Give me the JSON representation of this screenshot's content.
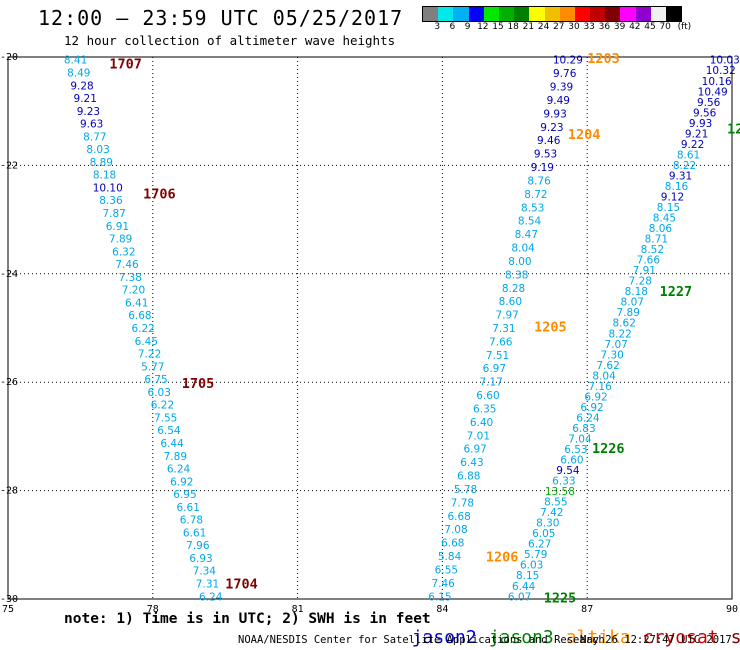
{
  "header": {
    "title": "12:00 – 23:59 UTC 05/25/2017",
    "subtitle": "12 hour collection of altimeter wave heights"
  },
  "colorbar": {
    "unit": "(ft)",
    "labels": [
      "3",
      "6",
      "9",
      "12",
      "15",
      "18",
      "21",
      "24",
      "27",
      "30",
      "33",
      "36",
      "39",
      "42",
      "45",
      "70"
    ],
    "colors": [
      "#7f7f7f",
      "#00e8e8",
      "#00b0f0",
      "#0000ff",
      "#00e800",
      "#00b000",
      "#008000",
      "#ffff00",
      "#f0c000",
      "#ff8c00",
      "#ff0000",
      "#c00000",
      "#800000",
      "#ff00ff",
      "#9000d0",
      "#f0f0f0",
      "#000000"
    ]
  },
  "axes": {
    "lon_min": 75,
    "lon_max": 90,
    "lat_min": -30,
    "lat_max": -20,
    "x_ticks": [
      "75",
      "78",
      "81",
      "84",
      "87",
      "90"
    ],
    "y_ticks": [
      "-20",
      "-22",
      "-24",
      "-26",
      "-28",
      "-30"
    ]
  },
  "satellite_colors": {
    "jason2": "#0000cc",
    "jason3": "#008000",
    "altika": "#ff8c00",
    "cryosat": "#cc0000",
    "s3a": "#800000"
  },
  "wave_colors": {
    "low": "#00a8e8",
    "mid": "#0000b8",
    "high": "#00b000"
  },
  "tracks": [
    {
      "name": "s3a-1704-1707",
      "lon_start": 76.4,
      "lon_end": 79.2,
      "lat_start": -20.05,
      "lat_end": -29.95,
      "values": [
        "8.41",
        "8.49",
        "9.28",
        "9.21",
        "9.23",
        "9.63",
        "8.77",
        "8.03",
        "8.89",
        "8.18",
        "10.10",
        "8.36",
        "7.87",
        "6.91",
        "7.89",
        "6.32",
        "7.46",
        "7.38",
        "7.20",
        "6.41",
        "6.68",
        "6.22",
        "6.45",
        "7.22",
        "5.77",
        "6.75",
        "6.03",
        "6.22",
        "7.55",
        "6.54",
        "6.44",
        "7.89",
        "6.24",
        "6.92",
        "6.95",
        "6.61",
        "6.78",
        "6.61",
        "7.96",
        "6.93",
        "7.34",
        "7.31",
        "6.24"
      ]
    },
    {
      "name": "altika-1203-1206",
      "lon_start": 86.6,
      "lon_end": 83.95,
      "lat_start": -20.05,
      "lat_end": -29.95,
      "values": [
        "10.29",
        "9.76",
        "9.39",
        "9.49",
        "9.93",
        "9.23",
        "9.46",
        "9.53",
        "9.19",
        "8.76",
        "8.72",
        "8.53",
        "8.54",
        "8.47",
        "8.04",
        "8.00",
        "8.38",
        "8.28",
        "8.60",
        "7.97",
        "7.31",
        "7.66",
        "7.51",
        "6.97",
        "7.17",
        "6.60",
        "6.35",
        "6.40",
        "7.01",
        "6.97",
        "6.43",
        "6.88",
        "5.78",
        "7.78",
        "6.68",
        "7.08",
        "6.68",
        "5.84",
        "6.55",
        "7.46",
        "6.15"
      ]
    },
    {
      "name": "jason3-1225-1227",
      "lon_start": 89.85,
      "lon_end": 85.6,
      "lat_start": -20.05,
      "lat_end": -29.95,
      "values": [
        "10.03",
        "10.32",
        "10.16",
        "10.49",
        "9.56",
        "9.56",
        "9.93",
        "9.21",
        "9.22",
        "8.61",
        "8.22",
        "9.31",
        "8.16",
        "9.12",
        "8.15",
        "8.45",
        "8.06",
        "8.71",
        "8.52",
        "7.66",
        "7.91",
        "7.28",
        "8.18",
        "8.07",
        "7.89",
        "8.62",
        "8.22",
        "7.07",
        "7.30",
        "7.62",
        "8.04",
        "7.16",
        "6.92",
        "6.92",
        "6.24",
        "6.83",
        "7.04",
        "6.53",
        "6.60",
        "9.54",
        "6.33",
        "13.58",
        "8.55",
        "7.42",
        "8.30",
        "6.05",
        "6.27",
        "5.79",
        "6.03",
        "8.15",
        "6.44",
        "6.07"
      ]
    }
  ],
  "pass_labels": [
    {
      "text": "1707",
      "sat": "s3a",
      "lon": 77.1,
      "lat": -20.1
    },
    {
      "text": "1706",
      "sat": "s3a",
      "lon": 77.8,
      "lat": -22.5
    },
    {
      "text": "1705",
      "sat": "s3a",
      "lon": 78.6,
      "lat": -26.0
    },
    {
      "text": "1704",
      "sat": "s3a",
      "lon": 79.5,
      "lat": -29.7
    },
    {
      "text": "1203",
      "sat": "altika",
      "lon": 87.0,
      "lat": -20.0
    },
    {
      "text": "1204",
      "sat": "altika",
      "lon": 86.6,
      "lat": -21.4
    },
    {
      "text": "1205",
      "sat": "altika",
      "lon": 85.9,
      "lat": -24.95
    },
    {
      "text": "1206",
      "sat": "altika",
      "lon": 84.9,
      "lat": -29.2
    },
    {
      "text": "12",
      "sat": "jason3",
      "lon": 89.9,
      "lat": -21.3
    },
    {
      "text": "1227",
      "sat": "jason3",
      "lon": 88.5,
      "lat": -24.3
    },
    {
      "text": "1226",
      "sat": "jason3",
      "lon": 87.1,
      "lat": -27.2
    },
    {
      "text": "1225",
      "sat": "jason3",
      "lon": 86.1,
      "lat": -29.95
    }
  ],
  "footer": {
    "note": "note: 1) Time is in UTC; 2) SWH is in feet",
    "legend": [
      "jason2",
      "jason3",
      "altika",
      "cryosat",
      "s3a"
    ],
    "credit": "NOAA/NESDIS Center for Satellite Applications and Research",
    "timestamp": "May 26 12:27:47 UTC 2017"
  }
}
